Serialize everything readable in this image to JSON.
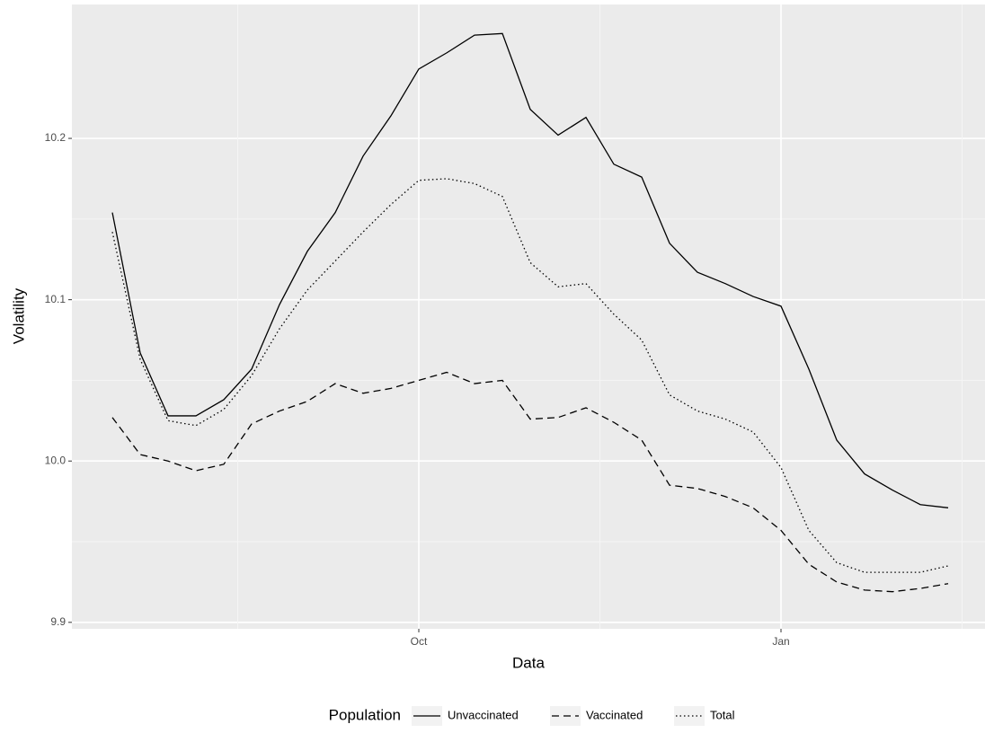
{
  "chart_data": {
    "type": "line",
    "x_label": "Data",
    "y_label": "Volatility",
    "legend_title": "Population",
    "legend_position": "bottom",
    "grid": true,
    "categories": [
      null,
      null,
      null,
      null,
      null,
      null,
      null,
      null,
      null,
      null,
      null,
      "Oct",
      null,
      null,
      null,
      null,
      null,
      null,
      null,
      null,
      null,
      null,
      null,
      null,
      "Jan",
      null,
      null,
      null,
      null,
      null,
      null
    ],
    "ylim": [
      9.896,
      10.283
    ],
    "yticks": [
      {
        "value": 9.9,
        "label": "9.9"
      },
      {
        "value": 10.0,
        "label": "10.0"
      },
      {
        "value": 10.1,
        "label": "10.1"
      },
      {
        "value": 10.2,
        "label": "10.2"
      }
    ],
    "series": [
      {
        "name": "Unvaccinated",
        "color": "#000000",
        "linetype": "solid",
        "values": [
          10.154,
          10.067,
          10.028,
          10.028,
          10.038,
          10.057,
          10.097,
          10.13,
          10.154,
          10.189,
          10.214,
          10.243,
          10.253,
          10.264,
          10.265,
          10.218,
          10.202,
          10.213,
          10.184,
          10.176,
          10.135,
          10.117,
          10.11,
          10.102,
          10.096,
          10.057,
          10.013,
          9.992,
          9.982,
          9.973,
          9.971
        ]
      },
      {
        "name": "Vaccinated",
        "color": "#000000",
        "linetype": "dashed",
        "values": [
          10.027,
          10.004,
          10.0,
          9.994,
          9.998,
          10.023,
          10.031,
          10.037,
          10.048,
          10.042,
          10.045,
          10.05,
          10.055,
          10.048,
          10.05,
          10.026,
          10.027,
          10.033,
          10.024,
          10.013,
          9.985,
          9.983,
          9.978,
          9.971,
          9.957,
          9.936,
          9.925,
          9.92,
          9.919,
          9.921,
          9.924
        ]
      },
      {
        "name": "Total",
        "color": "#000000",
        "linetype": "dotted",
        "values": [
          10.142,
          10.063,
          10.025,
          10.022,
          10.032,
          10.053,
          10.082,
          10.106,
          10.124,
          10.142,
          10.159,
          10.174,
          10.175,
          10.172,
          10.164,
          10.123,
          10.108,
          10.11,
          10.091,
          10.075,
          10.041,
          10.031,
          10.026,
          10.018,
          9.996,
          9.957,
          9.937,
          9.931,
          9.931,
          9.931,
          9.935
        ]
      }
    ]
  }
}
